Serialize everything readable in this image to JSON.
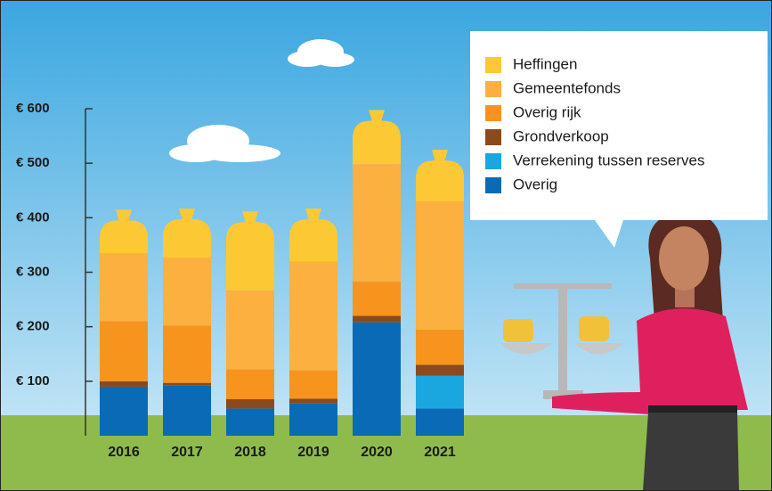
{
  "chart_data": {
    "type": "stacked-bar",
    "categories": [
      "2016",
      "2017",
      "2018",
      "2019",
      "2020",
      "2021"
    ],
    "series": [
      {
        "name": "Heffingen",
        "color": "#fcc934",
        "values": [
          60,
          70,
          125,
          77,
          80,
          75
        ]
      },
      {
        "name": "Gemeentefonds",
        "color": "#fbb040",
        "values": [
          125,
          125,
          145,
          200,
          215,
          235
        ]
      },
      {
        "name": "Overig rijk",
        "color": "#f7941d",
        "values": [
          110,
          105,
          55,
          52,
          63,
          65
        ]
      },
      {
        "name": "Grondverkoop",
        "color": "#8b4a1c",
        "values": [
          10,
          5,
          17,
          8,
          12,
          20
        ]
      },
      {
        "name": "Verrekening tussen reserves",
        "color": "#1aa7e0",
        "values": [
          0,
          0,
          0,
          0,
          0,
          60
        ]
      },
      {
        "name": "Overig",
        "color": "#0a6ab5",
        "values": [
          90,
          92,
          50,
          60,
          208,
          50
        ]
      }
    ],
    "ylim": [
      0,
      600
    ],
    "yticks": [
      {
        "value": 100,
        "label": "€ 100"
      },
      {
        "value": 200,
        "label": "€ 200"
      },
      {
        "value": 300,
        "label": "€ 300"
      },
      {
        "value": 400,
        "label": "€ 400"
      },
      {
        "value": 500,
        "label": "€ 500"
      },
      {
        "value": 600,
        "label": "€ 600"
      }
    ]
  }
}
